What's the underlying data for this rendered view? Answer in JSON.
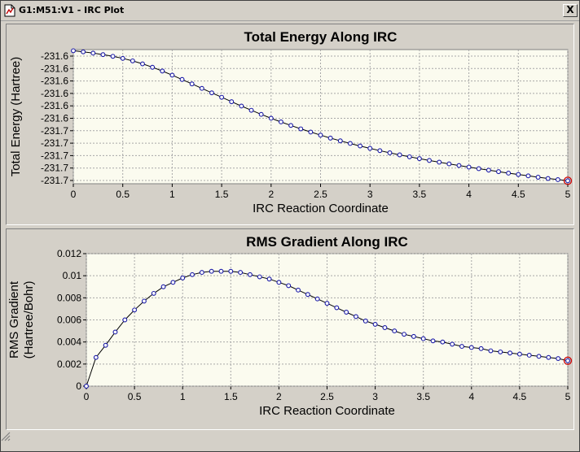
{
  "window": {
    "title": "G1:M51:V1 - IRC Plot",
    "close_label": "X"
  },
  "colors": {
    "plot_bg": "#fbfbef",
    "line": "#000000",
    "marker": "#1a1aa6",
    "highlight": "#cc0000",
    "grid": "#a8a8a8"
  },
  "chart_data": [
    {
      "type": "line",
      "title": "Total Energy Along IRC",
      "xlabel": "IRC Reaction Coordinate",
      "ylabel": "Total Energy (Hartree)",
      "xlim": [
        0,
        5
      ],
      "xticks": [
        0,
        0.5,
        1,
        1.5,
        2,
        2.5,
        3,
        3.5,
        4,
        4.5,
        5
      ],
      "xtick_labels": [
        "0",
        "0.5",
        "1",
        "1.5",
        "2",
        "2.5",
        "3",
        "3.5",
        "4",
        "4.5",
        "5"
      ],
      "ytick_labels": [
        "-231.6",
        "-231.6",
        "-231.6",
        "-231.6",
        "-231.6",
        "-231.6",
        "-231.7",
        "-231.7",
        "-231.7",
        "-231.7",
        "-231.7"
      ],
      "grid": true,
      "highlight_last_point": true,
      "x": [
        0,
        0.1,
        0.2,
        0.3,
        0.4,
        0.5,
        0.6,
        0.7,
        0.8,
        0.9,
        1.0,
        1.1,
        1.2,
        1.3,
        1.4,
        1.5,
        1.6,
        1.7,
        1.8,
        1.9,
        2.0,
        2.1,
        2.2,
        2.3,
        2.4,
        2.5,
        2.6,
        2.7,
        2.8,
        2.9,
        3.0,
        3.1,
        3.2,
        3.3,
        3.4,
        3.5,
        3.6,
        3.7,
        3.8,
        3.9,
        4.0,
        4.1,
        4.2,
        4.3,
        4.4,
        4.5,
        4.6,
        4.7,
        4.8,
        4.9,
        5.0
      ],
      "y": [
        -231.6,
        -231.601,
        -231.6021,
        -231.6034,
        -231.6049,
        -231.6067,
        -231.6089,
        -231.6115,
        -231.6145,
        -231.6178,
        -231.6214,
        -231.6252,
        -231.6291,
        -231.633,
        -231.6369,
        -231.6408,
        -231.6447,
        -231.6485,
        -231.6522,
        -231.6558,
        -231.6592,
        -231.6624,
        -231.6655,
        -231.6685,
        -231.6713,
        -231.674,
        -231.6766,
        -231.679,
        -231.6813,
        -231.6835,
        -231.6856,
        -231.6876,
        -231.6895,
        -231.6913,
        -231.693,
        -231.6946,
        -231.6962,
        -231.6977,
        -231.6992,
        -231.7006,
        -231.702,
        -231.7034,
        -231.7047,
        -231.706,
        -231.7073,
        -231.7085,
        -231.7097,
        -231.7109,
        -231.712,
        -231.713,
        -231.714
      ],
      "ylim": [
        -231.7166,
        -231.599
      ]
    },
    {
      "type": "line",
      "title": "RMS Gradient Along IRC",
      "xlabel": "IRC Reaction Coordinate",
      "ylabel_lines": [
        "RMS Gradient",
        "(Hartree/Bohr)"
      ],
      "xlim": [
        0,
        5
      ],
      "ylim": [
        0,
        0.012
      ],
      "xticks": [
        0,
        0.5,
        1,
        1.5,
        2,
        2.5,
        3,
        3.5,
        4,
        4.5,
        5
      ],
      "xtick_labels": [
        "0",
        "0.5",
        "1",
        "1.5",
        "2",
        "2.5",
        "3",
        "3.5",
        "4",
        "4.5",
        "5"
      ],
      "yticks": [
        0,
        0.002,
        0.004,
        0.006,
        0.008,
        0.01,
        0.012
      ],
      "ytick_labels": [
        "0",
        "0.002",
        "0.004",
        "0.006",
        "0.008",
        "0.01",
        "0.012"
      ],
      "grid": true,
      "highlight_last_point": true,
      "x": [
        0,
        0.1,
        0.2,
        0.3,
        0.4,
        0.5,
        0.6,
        0.7,
        0.8,
        0.9,
        1.0,
        1.1,
        1.2,
        1.3,
        1.4,
        1.5,
        1.6,
        1.7,
        1.8,
        1.9,
        2.0,
        2.1,
        2.2,
        2.3,
        2.4,
        2.5,
        2.6,
        2.7,
        2.8,
        2.9,
        3.0,
        3.1,
        3.2,
        3.3,
        3.4,
        3.5,
        3.6,
        3.7,
        3.8,
        3.9,
        4.0,
        4.1,
        4.2,
        4.3,
        4.4,
        4.5,
        4.6,
        4.7,
        4.8,
        4.9,
        5.0
      ],
      "y": [
        0.0,
        0.0026,
        0.0037,
        0.0049,
        0.006,
        0.0069,
        0.0077,
        0.0084,
        0.009,
        0.0094,
        0.0098,
        0.0101,
        0.0103,
        0.0104,
        0.0104,
        0.0104,
        0.0103,
        0.0101,
        0.0099,
        0.0097,
        0.0094,
        0.0091,
        0.0087,
        0.0083,
        0.0079,
        0.0075,
        0.0071,
        0.0067,
        0.0063,
        0.0059,
        0.0056,
        0.0053,
        0.005,
        0.0047,
        0.0045,
        0.0043,
        0.0041,
        0.004,
        0.0038,
        0.0036,
        0.0035,
        0.0034,
        0.0032,
        0.0031,
        0.003,
        0.0029,
        0.0028,
        0.0027,
        0.0026,
        0.0025,
        0.0023
      ]
    }
  ]
}
